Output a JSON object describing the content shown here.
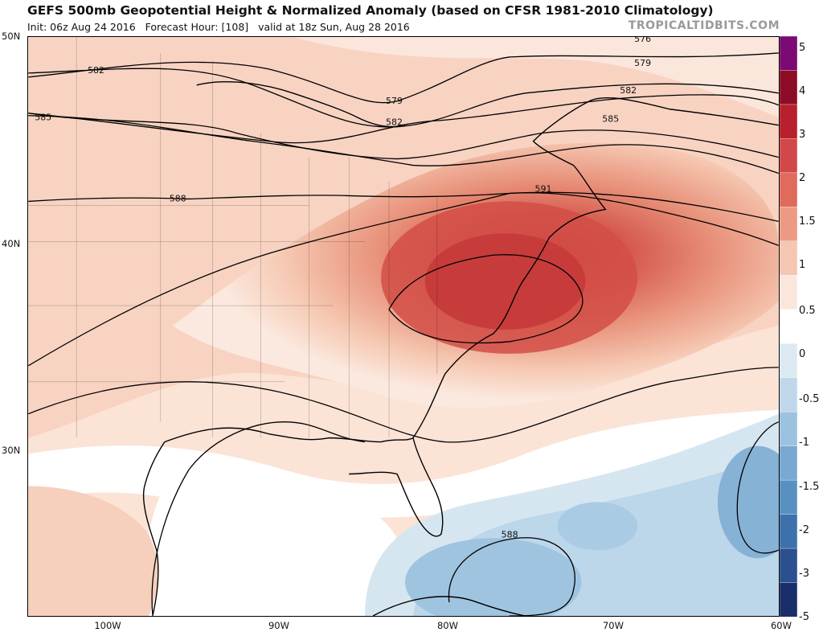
{
  "header": {
    "title": "GEFS 500mb Geopotential Height & Normalized Anomaly (based on CFSR 1981-2010 Climatology)",
    "subtitle": "Init: 06z Aug 24 2016   Forecast Hour: [108]   valid at 18z Sun, Aug 28 2016",
    "brand": "TROPICALTIDBITS.COM"
  },
  "map": {
    "region": "Eastern United States and Western Atlantic",
    "lat_labels": [
      "50N",
      "40N",
      "30N"
    ],
    "lon_labels": [
      "100W",
      "90W",
      "80W",
      "70W",
      "60W"
    ],
    "contour_labels": [
      "582",
      "585",
      "588",
      "579",
      "582",
      "585",
      "591",
      "579",
      "582",
      "576",
      "588"
    ]
  },
  "colorbar": {
    "ticks": [
      "5",
      "4",
      "3",
      "2",
      "1.5",
      "1",
      "0.5",
      "0",
      "-0.5",
      "-1",
      "-1.5",
      "-2",
      "-3",
      "-5"
    ],
    "colors": [
      "#7b0a73",
      "#8e0d26",
      "#b8202d",
      "#d2474a",
      "#e06b5c",
      "#ec9a84",
      "#f5c6b1",
      "#fbe6dc",
      "#ffffff",
      "#dde9f2",
      "#c0d7ea",
      "#9dc2df",
      "#79a9d1",
      "#5890c2",
      "#3d71ae",
      "#2a5090",
      "#1a2f6a"
    ]
  }
}
